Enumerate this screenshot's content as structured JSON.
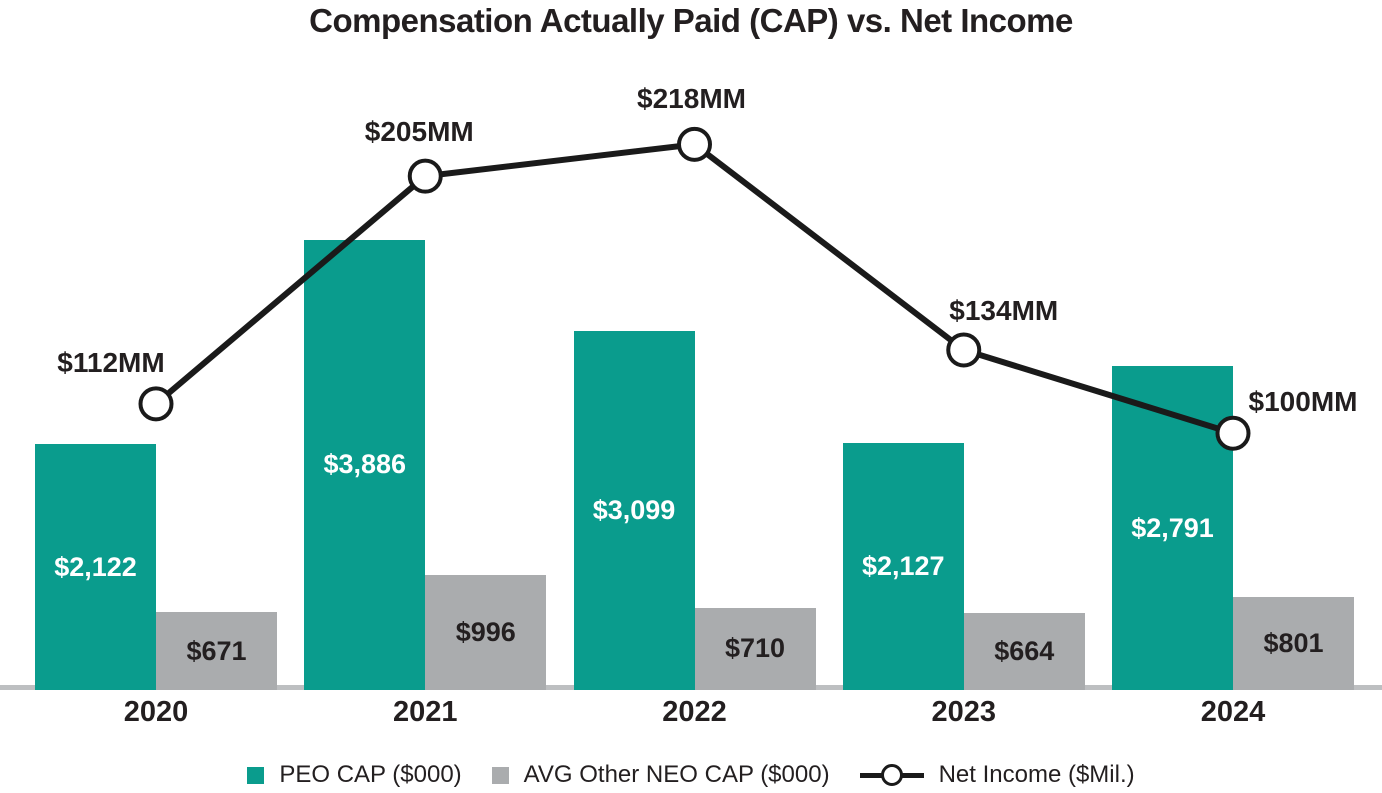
{
  "title": "Compensation Actually Paid (CAP) vs. Net Income",
  "colors": {
    "peo_bar": "#0A9C8D",
    "neo_bar": "#AAACAE",
    "line": "#1A1A1A",
    "marker_fill": "#FFFFFF",
    "axis_line": "#BDBFC1",
    "text_dark": "#231F20",
    "label_on_teal": "#FFFFFF",
    "label_on_gray": "#231F20"
  },
  "legend": {
    "items": [
      {
        "label": "PEO CAP ($000)",
        "swatch": "teal-square"
      },
      {
        "label": "AVG Other NEO CAP ($000)",
        "swatch": "gray-square"
      },
      {
        "label": "Net Income ($Mil.)",
        "swatch": "line-with-circle-marker"
      }
    ]
  },
  "chart_data": {
    "type": "bar",
    "subtype": "grouped-bars-with-line-overlay",
    "title": "Compensation Actually Paid (CAP) vs. Net Income",
    "categories": [
      "2020",
      "2021",
      "2022",
      "2023",
      "2024"
    ],
    "series": [
      {
        "name": "PEO CAP ($000)",
        "type": "bar",
        "color": "#0A9C8D",
        "values": [
          2122,
          3886,
          3099,
          2127,
          2791
        ],
        "labels": [
          "$2,122",
          "$3,886",
          "$3,099",
          "$2,127",
          "$2,791"
        ]
      },
      {
        "name": "AVG Other NEO CAP ($000)",
        "type": "bar",
        "color": "#AAACAE",
        "values": [
          671,
          996,
          710,
          664,
          801
        ],
        "labels": [
          "$671",
          "$996",
          "$710",
          "$664",
          "$801"
        ]
      },
      {
        "name": "Net Income ($Mil.)",
        "type": "line",
        "color": "#1A1A1A",
        "values": [
          112,
          205,
          218,
          134,
          100
        ],
        "labels": [
          "$112MM",
          "$205MM",
          "$218MM",
          "$134MM",
          "$100MM"
        ]
      }
    ],
    "xlabel": "",
    "ylabel": "",
    "y_axis_visible": false,
    "gridlines": false,
    "data_labels": "inside bars and above line points",
    "legend_position": "bottom"
  }
}
